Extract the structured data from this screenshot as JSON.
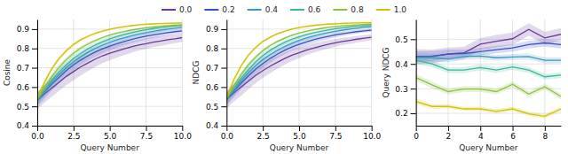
{
  "chart_data": [
    {
      "type": "line",
      "x_label": "Query Number",
      "y_label": "Cosine",
      "grid": true,
      "legend": "top",
      "x": [
        0.0,
        0.5,
        1.0,
        1.5,
        2.0,
        2.5,
        3.0,
        3.5,
        4.0,
        4.5,
        5.0,
        5.5,
        6.0,
        6.5,
        7.0,
        7.5,
        8.0,
        8.5,
        9.0,
        9.5,
        10.0
      ],
      "xlim": [
        0,
        10
      ],
      "xticks": [
        {
          "value": 0.0,
          "label": "0.0"
        },
        2.5,
        {
          "value": 5.0,
          "label": "5.0"
        },
        7.5,
        {
          "value": 10.0,
          "label": "10.0"
        }
      ],
      "ylim": [
        0.4,
        0.95
      ],
      "yticks": [
        0.4,
        0.5,
        0.6,
        0.7,
        0.8,
        0.9
      ],
      "series": [
        {
          "name": "0.0",
          "color": "#6B3A9B",
          "values": [
            0.53,
            0.565,
            0.595,
            0.625,
            0.655,
            0.68,
            0.705,
            0.725,
            0.745,
            0.762,
            0.775,
            0.787,
            0.798,
            0.808,
            0.818,
            0.825,
            0.833,
            0.838,
            0.845,
            0.85,
            0.856
          ],
          "std": [
            0.045,
            0.045,
            0.045,
            0.045,
            0.045,
            0.045,
            0.045,
            0.042,
            0.04,
            0.038,
            0.036,
            0.034,
            0.032,
            0.03,
            0.028,
            0.027,
            0.026,
            0.025,
            0.024,
            0.023,
            0.022
          ]
        },
        {
          "name": "0.2",
          "color": "#3A50C0",
          "values": [
            0.535,
            0.575,
            0.615,
            0.65,
            0.685,
            0.715,
            0.74,
            0.762,
            0.782,
            0.798,
            0.812,
            0.825,
            0.836,
            0.846,
            0.855,
            0.863,
            0.87,
            0.876,
            0.882,
            0.887,
            0.891
          ],
          "std": [
            0.035,
            0.035,
            0.033,
            0.031,
            0.029,
            0.027,
            0.026,
            0.025,
            0.024,
            0.023,
            0.022,
            0.021,
            0.02,
            0.019,
            0.018,
            0.017,
            0.016,
            0.015,
            0.014,
            0.013,
            0.012
          ]
        },
        {
          "name": "0.4",
          "color": "#3A9BC0",
          "values": [
            0.535,
            0.58,
            0.625,
            0.665,
            0.7,
            0.73,
            0.757,
            0.78,
            0.8,
            0.817,
            0.832,
            0.845,
            0.856,
            0.866,
            0.875,
            0.882,
            0.889,
            0.895,
            0.9,
            0.905,
            0.909
          ],
          "std": [
            0.03,
            0.03,
            0.028,
            0.026,
            0.024,
            0.022,
            0.021,
            0.02,
            0.019,
            0.018,
            0.017,
            0.016,
            0.015,
            0.014,
            0.013,
            0.012,
            0.011,
            0.01,
            0.009,
            0.008,
            0.007
          ]
        },
        {
          "name": "0.6",
          "color": "#3AB89B",
          "values": [
            0.535,
            0.585,
            0.635,
            0.678,
            0.715,
            0.748,
            0.775,
            0.798,
            0.818,
            0.835,
            0.85,
            0.862,
            0.873,
            0.882,
            0.89,
            0.897,
            0.903,
            0.908,
            0.912,
            0.916,
            0.919
          ],
          "std": [
            0.025,
            0.025,
            0.023,
            0.021,
            0.019,
            0.017,
            0.016,
            0.015,
            0.014,
            0.013,
            0.012,
            0.011,
            0.01,
            0.009,
            0.008,
            0.007,
            0.006,
            0.005,
            0.005,
            0.005,
            0.005
          ]
        },
        {
          "name": "0.8",
          "color": "#8DC040",
          "values": [
            0.54,
            0.6,
            0.655,
            0.702,
            0.742,
            0.775,
            0.802,
            0.823,
            0.841,
            0.856,
            0.869,
            0.879,
            0.888,
            0.895,
            0.901,
            0.907,
            0.911,
            0.915,
            0.918,
            0.921,
            0.923
          ],
          "std": [
            0.02,
            0.02,
            0.018,
            0.016,
            0.014,
            0.012,
            0.011,
            0.01,
            0.009,
            0.008,
            0.007,
            0.006,
            0.005,
            0.005,
            0.005,
            0.005,
            0.005,
            0.005,
            0.005,
            0.005,
            0.005
          ]
        },
        {
          "name": "1.0",
          "color": "#D4C000",
          "values": [
            0.545,
            0.625,
            0.695,
            0.748,
            0.788,
            0.82,
            0.845,
            0.863,
            0.878,
            0.89,
            0.899,
            0.907,
            0.913,
            0.918,
            0.922,
            0.925,
            0.927,
            0.929,
            0.93,
            0.931,
            0.932
          ],
          "std": [
            0.018,
            0.016,
            0.014,
            0.012,
            0.01,
            0.009,
            0.008,
            0.007,
            0.006,
            0.006,
            0.005,
            0.005,
            0.005,
            0.005,
            0.005,
            0.005,
            0.005,
            0.005,
            0.005,
            0.005,
            0.005
          ]
        }
      ]
    },
    {
      "type": "line",
      "x_label": "Query Number",
      "y_label": "NDCG",
      "grid": true,
      "x": [
        0.0,
        0.5,
        1.0,
        1.5,
        2.0,
        2.5,
        3.0,
        3.5,
        4.0,
        4.5,
        5.0,
        5.5,
        6.0,
        6.5,
        7.0,
        7.5,
        8.0,
        8.5,
        9.0,
        9.5,
        10.0
      ],
      "xlim": [
        0,
        10
      ],
      "xticks": [
        {
          "value": 0.0,
          "label": "0.0"
        },
        2.5,
        {
          "value": 5.0,
          "label": "5.0"
        },
        7.5,
        {
          "value": 10.0,
          "label": "10.0"
        }
      ],
      "ylim": [
        0.4,
        0.95
      ],
      "yticks": [
        0.4,
        0.5,
        0.6,
        0.7,
        0.8,
        0.9
      ],
      "series": [
        {
          "color": "#6B3A9B",
          "values": [
            0.535,
            0.57,
            0.6,
            0.63,
            0.66,
            0.685,
            0.708,
            0.728,
            0.748,
            0.765,
            0.778,
            0.791,
            0.802,
            0.812,
            0.821,
            0.829,
            0.836,
            0.842,
            0.848,
            0.853,
            0.858
          ],
          "std": [
            0.045,
            0.045,
            0.045,
            0.042,
            0.04,
            0.038,
            0.036,
            0.034,
            0.032,
            0.03,
            0.028,
            0.026,
            0.024,
            0.022,
            0.021,
            0.02,
            0.019,
            0.018,
            0.017,
            0.016,
            0.015
          ]
        },
        {
          "color": "#3A50C0",
          "values": [
            0.54,
            0.58,
            0.62,
            0.658,
            0.692,
            0.722,
            0.748,
            0.77,
            0.79,
            0.807,
            0.821,
            0.834,
            0.845,
            0.854,
            0.862,
            0.87,
            0.876,
            0.882,
            0.887,
            0.891,
            0.895
          ],
          "std": [
            0.035,
            0.033,
            0.031,
            0.029,
            0.027,
            0.025,
            0.023,
            0.021,
            0.02,
            0.019,
            0.018,
            0.017,
            0.016,
            0.015,
            0.014,
            0.013,
            0.012,
            0.011,
            0.01,
            0.009,
            0.008
          ]
        },
        {
          "color": "#3A9BC0",
          "values": [
            0.54,
            0.585,
            0.632,
            0.674,
            0.71,
            0.742,
            0.768,
            0.79,
            0.81,
            0.827,
            0.842,
            0.854,
            0.865,
            0.874,
            0.882,
            0.889,
            0.895,
            0.9,
            0.905,
            0.909,
            0.912
          ],
          "std": [
            0.03,
            0.028,
            0.026,
            0.024,
            0.022,
            0.02,
            0.018,
            0.016,
            0.015,
            0.014,
            0.013,
            0.012,
            0.011,
            0.01,
            0.009,
            0.008,
            0.007,
            0.006,
            0.005,
            0.005,
            0.005
          ]
        },
        {
          "color": "#3AB89B",
          "values": [
            0.54,
            0.592,
            0.645,
            0.69,
            0.73,
            0.763,
            0.79,
            0.812,
            0.831,
            0.847,
            0.86,
            0.872,
            0.881,
            0.889,
            0.896,
            0.902,
            0.907,
            0.911,
            0.915,
            0.918,
            0.92
          ],
          "std": [
            0.025,
            0.023,
            0.021,
            0.019,
            0.017,
            0.015,
            0.013,
            0.012,
            0.011,
            0.01,
            0.009,
            0.008,
            0.007,
            0.006,
            0.005,
            0.005,
            0.005,
            0.005,
            0.005,
            0.005,
            0.005
          ]
        },
        {
          "color": "#8DC040",
          "values": [
            0.542,
            0.608,
            0.665,
            0.715,
            0.755,
            0.788,
            0.815,
            0.836,
            0.853,
            0.868,
            0.879,
            0.889,
            0.897,
            0.903,
            0.909,
            0.913,
            0.917,
            0.92,
            0.922,
            0.924,
            0.926
          ],
          "std": [
            0.02,
            0.018,
            0.016,
            0.014,
            0.012,
            0.01,
            0.009,
            0.008,
            0.007,
            0.006,
            0.005,
            0.005,
            0.005,
            0.005,
            0.005,
            0.005,
            0.005,
            0.005,
            0.005,
            0.005,
            0.005
          ]
        },
        {
          "color": "#D4C000",
          "values": [
            0.545,
            0.638,
            0.71,
            0.765,
            0.805,
            0.836,
            0.858,
            0.876,
            0.889,
            0.9,
            0.908,
            0.914,
            0.919,
            0.923,
            0.926,
            0.928,
            0.93,
            0.931,
            0.932,
            0.933,
            0.933
          ],
          "std": [
            0.018,
            0.014,
            0.012,
            0.01,
            0.008,
            0.007,
            0.006,
            0.005,
            0.005,
            0.005,
            0.005,
            0.005,
            0.005,
            0.005,
            0.005,
            0.005,
            0.005,
            0.005,
            0.005,
            0.005,
            0.005
          ]
        }
      ]
    },
    {
      "type": "line",
      "x_label": "Query Number",
      "y_label": "Query NDCG",
      "grid": true,
      "x": [
        0,
        1,
        2,
        3,
        4,
        5,
        6,
        7,
        8,
        9
      ],
      "xlim": [
        0,
        9
      ],
      "xticks": [
        0,
        2,
        4,
        6,
        8
      ],
      "ylim": [
        0.15,
        0.58
      ],
      "yticks": [
        0.2,
        0.3,
        0.4,
        0.5
      ],
      "series": [
        {
          "color": "#6B3A9B",
          "values": [
            0.43,
            0.43,
            0.44,
            0.445,
            0.48,
            0.492,
            0.502,
            0.54,
            0.505,
            0.52
          ],
          "std": [
            0.03,
            0.028,
            0.026,
            0.025,
            0.025,
            0.025,
            0.025,
            0.025,
            0.025,
            0.025
          ]
        },
        {
          "color": "#3A50C0",
          "values": [
            0.43,
            0.432,
            0.44,
            0.442,
            0.45,
            0.458,
            0.465,
            0.478,
            0.485,
            0.478
          ],
          "std": [
            0.022,
            0.02,
            0.018,
            0.016,
            0.015,
            0.015,
            0.015,
            0.015,
            0.015,
            0.015
          ]
        },
        {
          "color": "#3A9BC0",
          "values": [
            0.425,
            0.425,
            0.42,
            0.43,
            0.432,
            0.425,
            0.428,
            0.43,
            0.415,
            0.415
          ],
          "std": [
            0.018,
            0.016,
            0.014,
            0.012,
            0.012,
            0.012,
            0.012,
            0.012,
            0.012,
            0.012
          ]
        },
        {
          "color": "#3AB89B",
          "values": [
            0.415,
            0.4,
            0.375,
            0.375,
            0.385,
            0.375,
            0.388,
            0.375,
            0.348,
            0.355
          ],
          "std": [
            0.015,
            0.013,
            0.012,
            0.012,
            0.012,
            0.012,
            0.012,
            0.012,
            0.012,
            0.012
          ]
        },
        {
          "color": "#8DC040",
          "values": [
            0.345,
            0.315,
            0.288,
            0.298,
            0.298,
            0.288,
            0.318,
            0.278,
            0.308,
            0.268
          ],
          "std": [
            0.015,
            0.013,
            0.012,
            0.012,
            0.012,
            0.012,
            0.012,
            0.012,
            0.012,
            0.012
          ]
        },
        {
          "color": "#D4C000",
          "values": [
            0.248,
            0.228,
            0.228,
            0.218,
            0.218,
            0.208,
            0.218,
            0.198,
            0.188,
            0.218
          ],
          "std": [
            0.012,
            0.01,
            0.009,
            0.009,
            0.009,
            0.009,
            0.009,
            0.009,
            0.009,
            0.009
          ]
        }
      ]
    }
  ]
}
